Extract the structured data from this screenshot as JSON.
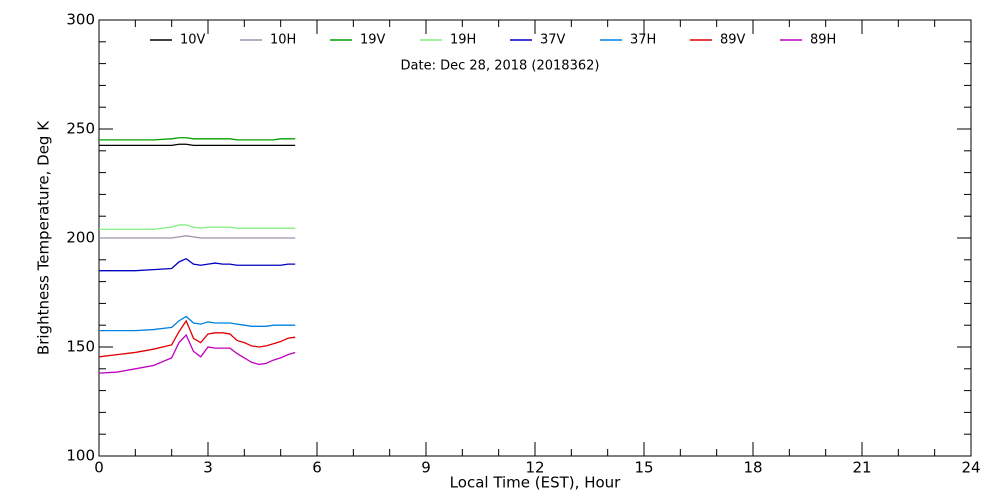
{
  "chart_data": {
    "type": "line",
    "annotation": "Date: Dec 28, 2018 (2018362)",
    "x_label": "Local Time (EST), Hour",
    "y_label": "Brightness Temperature, Deg K",
    "xlim": [
      0,
      24
    ],
    "xticks": [
      0,
      3,
      6,
      9,
      12,
      15,
      18,
      21,
      24
    ],
    "ylim": [
      100,
      300
    ],
    "yticks": [
      100,
      150,
      200,
      250,
      300
    ],
    "x": [
      0,
      0.5,
      1,
      1.5,
      2,
      2.2,
      2.4,
      2.6,
      2.8,
      3,
      3.2,
      3.4,
      3.6,
      3.8,
      4,
      4.2,
      4.4,
      4.6,
      4.8,
      5,
      5.2,
      5.4
    ],
    "series": [
      {
        "name": "10V",
        "color": "#000000",
        "values": [
          242.5,
          242.5,
          242.5,
          242.5,
          242.5,
          243,
          243,
          242.5,
          242.5,
          242.5,
          242.5,
          242.5,
          242.5,
          242.5,
          242.5,
          242.5,
          242.5,
          242.5,
          242.5,
          242.5,
          242.5,
          242.5
        ]
      },
      {
        "name": "10H",
        "color": "#a090b0",
        "values": [
          200,
          200,
          200,
          200,
          200,
          200.5,
          201,
          200.5,
          200,
          200,
          200,
          200,
          200,
          200,
          200,
          200,
          200,
          200,
          200,
          200,
          200,
          200
        ]
      },
      {
        "name": "19V",
        "color": "#00a000",
        "values": [
          245,
          245,
          245,
          245,
          245.5,
          246,
          246,
          245.5,
          245.5,
          245.5,
          245.5,
          245.5,
          245.5,
          245,
          245,
          245,
          245,
          245,
          245,
          245.5,
          245.5,
          245.5
        ]
      },
      {
        "name": "19H",
        "color": "#80f080",
        "values": [
          204,
          204,
          204,
          204,
          205,
          206,
          206,
          205,
          204.5,
          205,
          205,
          205,
          205,
          204.5,
          204.5,
          204.5,
          204.5,
          204.5,
          204.5,
          204.5,
          204.5,
          204.5
        ]
      },
      {
        "name": "37V",
        "color": "#0000c0",
        "values": [
          185,
          185,
          185,
          185.5,
          186,
          189,
          190.5,
          188,
          187.5,
          188,
          188.5,
          188,
          188,
          187.5,
          187.5,
          187.5,
          187.5,
          187.5,
          187.5,
          187.5,
          188,
          188
        ]
      },
      {
        "name": "37H",
        "color": "#0080e0",
        "values": [
          157.5,
          157.5,
          157.5,
          158,
          159,
          162,
          164,
          161,
          160.5,
          161.5,
          161,
          161,
          161,
          160.5,
          160,
          159.5,
          159.5,
          159.5,
          160,
          160,
          160,
          160
        ]
      },
      {
        "name": "89V",
        "color": "#e00000",
        "values": [
          145.5,
          146.5,
          147.5,
          149,
          151,
          157,
          162,
          154,
          152,
          156,
          156.5,
          156.5,
          156,
          153,
          152,
          150.5,
          150,
          150.5,
          151.5,
          152.5,
          154,
          154.5
        ]
      },
      {
        "name": "89H",
        "color": "#c000c0",
        "values": [
          138,
          138.5,
          140,
          141.5,
          145,
          152,
          155.5,
          148,
          145.5,
          150,
          149.5,
          149.5,
          149.5,
          147,
          145,
          143,
          142,
          142.5,
          144,
          145,
          146.5,
          147.5
        ]
      }
    ]
  }
}
